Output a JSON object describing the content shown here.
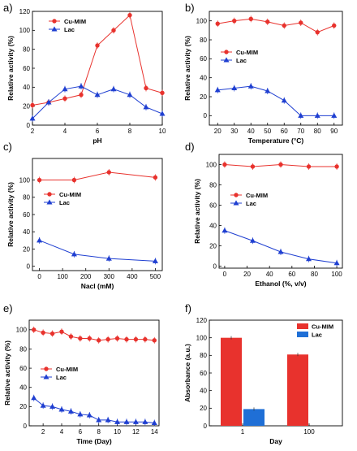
{
  "colors": {
    "cu": "#e8322d",
    "lac": "#1f3fd1",
    "bar_lac": "#1f6fd6"
  },
  "chart_data": [
    {
      "id": "a",
      "panel_label": "a)",
      "type": "line",
      "xlabel": "pH",
      "ylabel": "Relative activity (%)",
      "xlim": [
        2,
        10
      ],
      "ylim": [
        0,
        120
      ],
      "xticks": [
        2,
        4,
        6,
        8,
        10
      ],
      "yticks": [
        0,
        20,
        40,
        60,
        80,
        100,
        120
      ],
      "legend": "top-left",
      "series": [
        {
          "name": "Cu-MIM",
          "marker": "circle",
          "color": "#e8322d",
          "x": [
            2,
            3,
            4,
            5,
            6,
            7,
            8,
            9,
            10
          ],
          "y": [
            21,
            24,
            28,
            32,
            84,
            100,
            116,
            39,
            34
          ]
        },
        {
          "name": "Lac",
          "marker": "triangle",
          "color": "#1f3fd1",
          "x": [
            2,
            3,
            4,
            5,
            6,
            7,
            8,
            9,
            10
          ],
          "y": [
            7,
            24,
            38,
            41,
            32,
            38,
            32,
            19,
            12
          ]
        }
      ]
    },
    {
      "id": "b",
      "panel_label": "b)",
      "type": "line",
      "xlabel": "Temperature (°C)",
      "ylabel": "Relative activity (%)",
      "xlim": [
        15,
        95
      ],
      "ylim": [
        -10,
        110
      ],
      "xticks": [
        10,
        20,
        30,
        40,
        50,
        60,
        70,
        80,
        90
      ],
      "yticks": [
        0,
        20,
        40,
        60,
        80,
        100
      ],
      "legend": "center-left",
      "series": [
        {
          "name": "Cu-MIM",
          "marker": "circle",
          "color": "#e8322d",
          "x": [
            20,
            30,
            40,
            50,
            60,
            70,
            80,
            90
          ],
          "y": [
            97,
            100,
            102,
            99,
            95,
            98,
            88,
            95
          ]
        },
        {
          "name": "Lac",
          "marker": "triangle",
          "color": "#1f3fd1",
          "x": [
            20,
            30,
            40,
            50,
            60,
            70,
            80,
            90
          ],
          "y": [
            27,
            29,
            31,
            26,
            16,
            0,
            0,
            0
          ]
        }
      ]
    },
    {
      "id": "c",
      "panel_label": "c)",
      "type": "line",
      "xlabel": "Nacl (mM)",
      "ylabel": "Relative activity (%)",
      "xlim": [
        -30,
        530
      ],
      "ylim": [
        -5,
        125
      ],
      "xticks": [
        0,
        100,
        200,
        300,
        400,
        500
      ],
      "yticks": [
        0,
        20,
        40,
        60,
        80,
        100
      ],
      "legend": "center-left",
      "series": [
        {
          "name": "Cu-MIM",
          "marker": "circle",
          "color": "#e8322d",
          "x": [
            0,
            150,
            300,
            500
          ],
          "y": [
            100,
            100,
            109,
            103
          ]
        },
        {
          "name": "Lac",
          "marker": "triangle",
          "color": "#1f3fd1",
          "x": [
            0,
            150,
            300,
            500
          ],
          "y": [
            30,
            14,
            9,
            6
          ]
        }
      ]
    },
    {
      "id": "d",
      "panel_label": "d)",
      "type": "line",
      "xlabel": "Ethanol (%, v/v)",
      "ylabel": "Relative activity (%)",
      "xlim": [
        -5,
        105
      ],
      "ylim": [
        -2,
        110
      ],
      "xticks": [
        0,
        20,
        40,
        60,
        80,
        100
      ],
      "yticks": [
        0,
        20,
        40,
        60,
        80,
        100
      ],
      "legend": "center-left",
      "series": [
        {
          "name": "Cu-MIM",
          "marker": "circle",
          "color": "#e8322d",
          "x": [
            0,
            25,
            50,
            75,
            100
          ],
          "y": [
            100,
            98,
            100,
            98,
            98
          ]
        },
        {
          "name": "Lac",
          "marker": "triangle",
          "color": "#1f3fd1",
          "x": [
            0,
            25,
            50,
            75,
            100
          ],
          "y": [
            35,
            25,
            14,
            7,
            3
          ]
        }
      ]
    },
    {
      "id": "e",
      "panel_label": "e)",
      "type": "line",
      "xlabel": "Time (Day)",
      "ylabel": "Relative activity (%)",
      "xlim": [
        0.5,
        14.5
      ],
      "ylim": [
        0,
        110
      ],
      "xticks": [
        2,
        4,
        6,
        8,
        10,
        12,
        14
      ],
      "yticks": [
        0,
        20,
        40,
        60,
        80,
        100
      ],
      "legend": "center-left",
      "series": [
        {
          "name": "Cu-MIM",
          "marker": "circle",
          "color": "#e8322d",
          "x": [
            1,
            2,
            3,
            4,
            5,
            6,
            7,
            8,
            9,
            10,
            11,
            12,
            13,
            14
          ],
          "y": [
            100,
            97,
            96,
            98,
            93,
            91,
            91,
            89,
            90,
            91,
            90,
            90,
            90,
            89
          ]
        },
        {
          "name": "Lac",
          "marker": "triangle",
          "color": "#1f3fd1",
          "x": [
            1,
            2,
            3,
            4,
            5,
            6,
            7,
            8,
            9,
            10,
            11,
            12,
            13,
            14
          ],
          "y": [
            29,
            21,
            20,
            17,
            15,
            12,
            11,
            6,
            6,
            4,
            4,
            4,
            4,
            3
          ]
        }
      ]
    },
    {
      "id": "f",
      "panel_label": "f)",
      "type": "bar",
      "xlabel": "Day",
      "ylabel": "Absorbance (a.u.)",
      "categories": [
        "1",
        "100"
      ],
      "ylim": [
        0,
        120
      ],
      "yticks": [
        0,
        20,
        40,
        60,
        80,
        100,
        120
      ],
      "legend": "top-right",
      "series": [
        {
          "name": "Cu-MIM",
          "color": "#e8322d",
          "values": [
            100,
            81
          ]
        },
        {
          "name": "Lac",
          "color": "#1f6fd6",
          "values": [
            19,
            0
          ]
        }
      ]
    }
  ]
}
